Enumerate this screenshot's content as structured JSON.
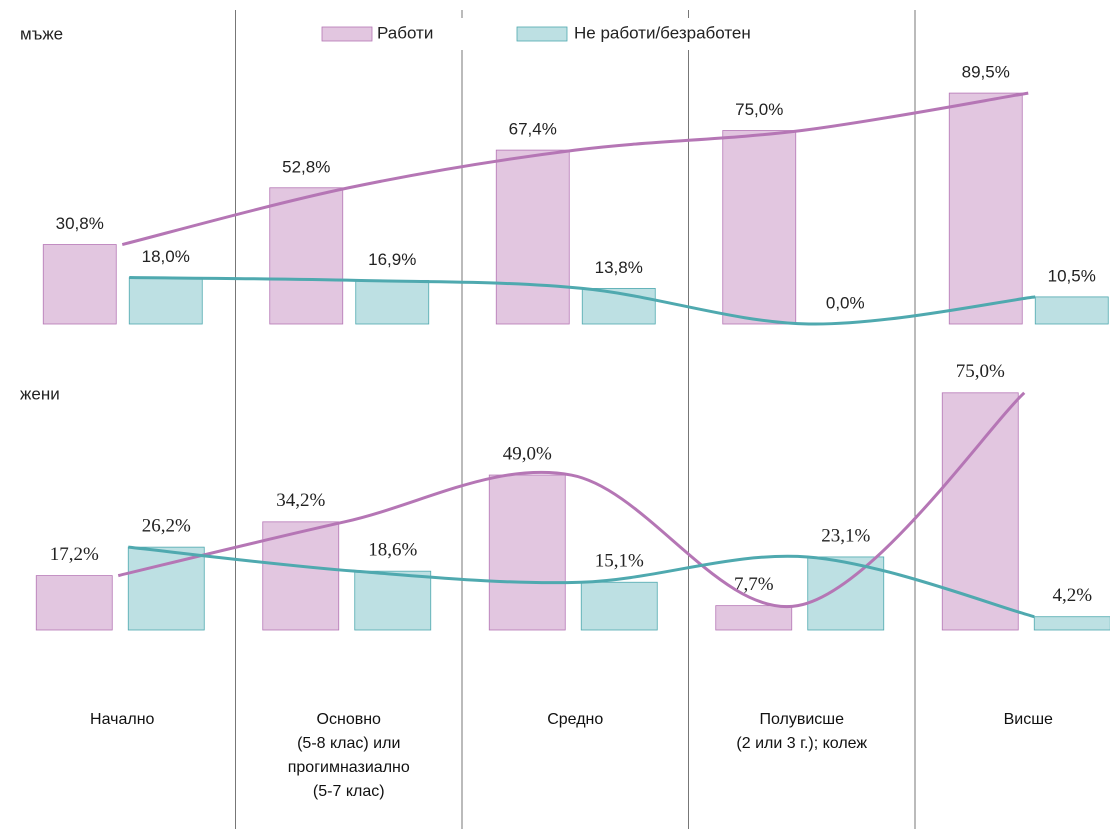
{
  "chart_data": {
    "type": "bar",
    "smooth_line": true,
    "categories": [
      "Начално",
      "Основно\n(5-8 клас) или\nпрогимназиално\n(5-7 клас)",
      "Средно",
      "Полувисше\n(2 или 3 г.); колеж",
      "Висше"
    ],
    "series": [
      {
        "name": "Работи",
        "color": "#e2c6e0",
        "line_color": "#b576b5"
      },
      {
        "name": "Не работи/безработен",
        "color": "#bde0e3",
        "line_color": "#4fa9af"
      }
    ],
    "panels": [
      {
        "label": "мъже",
        "ylim": [
          0,
          100
        ],
        "values": [
          [
            30.8,
            52.8,
            67.4,
            75.0,
            89.5
          ],
          [
            18.0,
            16.9,
            13.8,
            0.0,
            10.5
          ]
        ],
        "value_labels": [
          [
            "30,8%",
            "52,8%",
            "67,4%",
            "75,0%",
            "89,5%"
          ],
          [
            "18,0%",
            "16,9%",
            "13,8%",
            "0,0%",
            "10,5%"
          ]
        ]
      },
      {
        "label": "жени",
        "ylim": [
          0,
          80
        ],
        "values": [
          [
            17.2,
            34.2,
            49.0,
            7.7,
            75.0
          ],
          [
            26.2,
            18.6,
            15.1,
            23.1,
            4.2
          ]
        ],
        "value_labels": [
          [
            "17,2%",
            "34,2%",
            "49,0%",
            "7,7%",
            "75,0%"
          ],
          [
            "26,2%",
            "18,6%",
            "15,1%",
            "23,1%",
            "4,2%"
          ]
        ]
      }
    ]
  }
}
